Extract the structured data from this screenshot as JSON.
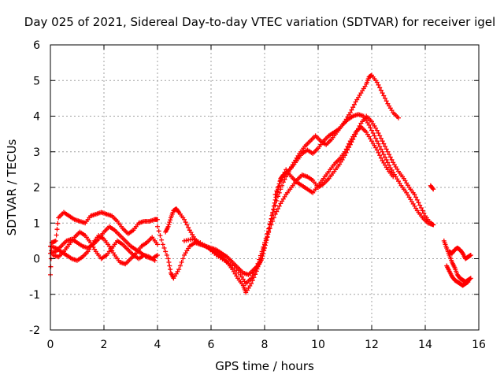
{
  "chart_data": {
    "type": "scatter",
    "title": "Day 025 of 2021, Sidereal Day-to-day VTEC variation (SDTVAR) for receiver igel",
    "xlabel": "GPS time / hours",
    "ylabel": "SDTVAR / TECUs",
    "xlim": [
      0,
      16
    ],
    "ylim": [
      -2,
      6
    ],
    "x_ticks": [
      "0",
      "2",
      "4",
      "6",
      "8",
      "10",
      "12",
      "14",
      "16"
    ],
    "y_ticks": [
      "-2",
      "-1",
      "0",
      "1",
      "2",
      "3",
      "4",
      "5",
      "6"
    ],
    "grid": true,
    "marker": "+",
    "color": "#ff0000",
    "series": [
      {
        "points": [
          [
            0.0,
            -0.45
          ],
          [
            0.05,
            0.45
          ],
          [
            0.2,
            0.5
          ],
          [
            0.3,
            1.15
          ],
          [
            0.5,
            1.3
          ],
          [
            0.7,
            1.2
          ],
          [
            0.9,
            1.1
          ],
          [
            1.1,
            1.05
          ],
          [
            1.3,
            1.0
          ],
          [
            1.5,
            1.2
          ],
          [
            1.7,
            1.25
          ],
          [
            1.9,
            1.3
          ],
          [
            2.1,
            1.25
          ],
          [
            2.3,
            1.2
          ],
          [
            2.5,
            1.05
          ],
          [
            2.7,
            0.85
          ],
          [
            2.9,
            0.7
          ],
          [
            3.1,
            0.8
          ],
          [
            3.3,
            1.0
          ],
          [
            3.5,
            1.05
          ],
          [
            3.7,
            1.05
          ],
          [
            3.9,
            1.1
          ],
          [
            4.0,
            1.1
          ]
        ]
      },
      {
        "points": [
          [
            0.0,
            0.15
          ],
          [
            0.2,
            0.2
          ],
          [
            0.4,
            0.35
          ],
          [
            0.6,
            0.5
          ],
          [
            0.8,
            0.55
          ],
          [
            1.0,
            0.45
          ],
          [
            1.2,
            0.35
          ],
          [
            1.4,
            0.3
          ],
          [
            1.6,
            0.4
          ],
          [
            1.8,
            0.55
          ],
          [
            2.0,
            0.75
          ],
          [
            2.2,
            0.9
          ],
          [
            2.4,
            0.8
          ],
          [
            2.6,
            0.65
          ],
          [
            2.8,
            0.5
          ],
          [
            3.0,
            0.35
          ],
          [
            3.2,
            0.25
          ],
          [
            3.4,
            0.15
          ],
          [
            3.6,
            0.05
          ],
          [
            3.8,
            0.0
          ],
          [
            4.0,
            0.1
          ]
        ]
      },
      {
        "points": [
          [
            0.0,
            0.35
          ],
          [
            0.2,
            0.3
          ],
          [
            0.4,
            0.2
          ],
          [
            0.6,
            0.1
          ],
          [
            0.8,
            0.0
          ],
          [
            1.0,
            -0.05
          ],
          [
            1.2,
            0.05
          ],
          [
            1.4,
            0.2
          ],
          [
            1.6,
            0.45
          ],
          [
            1.8,
            0.65
          ],
          [
            2.0,
            0.55
          ],
          [
            2.2,
            0.35
          ],
          [
            2.4,
            0.1
          ],
          [
            2.6,
            -0.1
          ],
          [
            2.8,
            -0.15
          ],
          [
            3.0,
            0.0
          ],
          [
            3.2,
            0.15
          ],
          [
            3.4,
            0.35
          ],
          [
            3.6,
            0.45
          ],
          [
            3.8,
            0.6
          ],
          [
            4.0,
            0.4
          ]
        ]
      },
      {
        "points": [
          [
            0.1,
            0.1
          ],
          [
            0.3,
            0.05
          ],
          [
            0.5,
            0.2
          ],
          [
            0.7,
            0.4
          ],
          [
            0.9,
            0.6
          ],
          [
            1.1,
            0.75
          ],
          [
            1.3,
            0.65
          ],
          [
            1.5,
            0.45
          ],
          [
            1.7,
            0.2
          ],
          [
            1.9,
            0.0
          ],
          [
            2.1,
            0.1
          ],
          [
            2.3,
            0.3
          ],
          [
            2.5,
            0.5
          ],
          [
            2.7,
            0.4
          ],
          [
            2.9,
            0.25
          ],
          [
            3.1,
            0.1
          ],
          [
            3.3,
            0.0
          ],
          [
            3.5,
            0.1
          ],
          [
            3.7,
            0.05
          ],
          [
            3.9,
            -0.05
          ]
        ]
      },
      {
        "points": [
          [
            4.3,
            0.75
          ],
          [
            4.4,
            0.9
          ],
          [
            4.5,
            1.15
          ],
          [
            4.6,
            1.35
          ],
          [
            4.7,
            1.4
          ],
          [
            4.8,
            1.3
          ],
          [
            5.0,
            1.1
          ],
          [
            5.2,
            0.8
          ],
          [
            5.4,
            0.55
          ],
          [
            5.6,
            0.4
          ],
          [
            5.8,
            0.35
          ],
          [
            6.0,
            0.3
          ],
          [
            6.2,
            0.25
          ],
          [
            6.4,
            0.15
          ],
          [
            6.6,
            0.05
          ],
          [
            6.8,
            -0.1
          ],
          [
            7.0,
            -0.25
          ],
          [
            7.2,
            -0.4
          ],
          [
            7.4,
            -0.45
          ],
          [
            7.6,
            -0.3
          ],
          [
            7.8,
            -0.15
          ],
          [
            7.9,
            0.0
          ],
          [
            8.0,
            0.3
          ],
          [
            8.1,
            0.6
          ],
          [
            8.2,
            0.95
          ],
          [
            8.3,
            1.3
          ],
          [
            8.4,
            1.65
          ],
          [
            8.5,
            1.95
          ],
          [
            8.6,
            2.25
          ],
          [
            8.7,
            2.35
          ],
          [
            8.8,
            2.4
          ],
          [
            9.0,
            2.55
          ],
          [
            9.2,
            2.75
          ],
          [
            9.4,
            2.95
          ],
          [
            9.6,
            3.05
          ],
          [
            9.8,
            2.95
          ],
          [
            10.0,
            3.1
          ],
          [
            10.2,
            3.3
          ],
          [
            10.4,
            3.45
          ],
          [
            10.6,
            3.55
          ],
          [
            10.8,
            3.65
          ],
          [
            11.0,
            3.85
          ],
          [
            11.2,
            4.1
          ],
          [
            11.4,
            4.4
          ],
          [
            11.6,
            4.65
          ],
          [
            11.8,
            4.9
          ],
          [
            11.9,
            5.1
          ],
          [
            12.0,
            5.15
          ],
          [
            12.2,
            4.95
          ],
          [
            12.4,
            4.65
          ],
          [
            12.6,
            4.35
          ],
          [
            12.8,
            4.1
          ],
          [
            13.0,
            3.95
          ]
        ]
      },
      {
        "points": [
          [
            4.0,
            0.9
          ],
          [
            4.2,
            0.4
          ],
          [
            4.4,
            0.0
          ],
          [
            4.5,
            -0.4
          ],
          [
            4.6,
            -0.55
          ],
          [
            4.8,
            -0.3
          ],
          [
            5.0,
            0.1
          ],
          [
            5.2,
            0.35
          ],
          [
            5.4,
            0.45
          ],
          [
            5.6,
            0.4
          ],
          [
            5.8,
            0.35
          ],
          [
            6.0,
            0.25
          ],
          [
            6.2,
            0.15
          ],
          [
            6.4,
            0.05
          ],
          [
            6.6,
            -0.1
          ],
          [
            6.8,
            -0.3
          ],
          [
            7.0,
            -0.55
          ],
          [
            7.2,
            -0.75
          ],
          [
            7.3,
            -0.95
          ],
          [
            7.5,
            -0.7
          ],
          [
            7.7,
            -0.35
          ],
          [
            7.8,
            -0.1
          ],
          [
            8.0,
            0.4
          ],
          [
            8.2,
            0.85
          ],
          [
            8.4,
            1.25
          ],
          [
            8.6,
            1.55
          ],
          [
            8.8,
            1.8
          ],
          [
            9.0,
            2.0
          ],
          [
            9.2,
            2.2
          ],
          [
            9.4,
            2.35
          ],
          [
            9.6,
            2.3
          ],
          [
            9.8,
            2.2
          ],
          [
            10.0,
            2.0
          ],
          [
            10.2,
            2.1
          ],
          [
            10.4,
            2.25
          ],
          [
            10.6,
            2.45
          ],
          [
            10.8,
            2.65
          ],
          [
            11.0,
            2.9
          ],
          [
            11.2,
            3.2
          ],
          [
            11.4,
            3.5
          ],
          [
            11.6,
            3.8
          ],
          [
            11.8,
            4.0
          ],
          [
            12.0,
            3.85
          ],
          [
            12.2,
            3.6
          ],
          [
            12.4,
            3.3
          ],
          [
            12.6,
            3.0
          ],
          [
            12.8,
            2.7
          ],
          [
            13.0,
            2.45
          ],
          [
            13.2,
            2.25
          ],
          [
            13.4,
            2.0
          ],
          [
            13.6,
            1.8
          ],
          [
            13.8,
            1.5
          ],
          [
            14.0,
            1.2
          ],
          [
            14.2,
            1.0
          ],
          [
            14.3,
            0.95
          ]
        ]
      },
      {
        "points": [
          [
            5.0,
            0.5
          ],
          [
            5.3,
            0.55
          ],
          [
            5.6,
            0.45
          ],
          [
            5.9,
            0.3
          ],
          [
            6.2,
            0.1
          ],
          [
            6.5,
            -0.05
          ],
          [
            6.8,
            -0.2
          ],
          [
            7.1,
            -0.45
          ],
          [
            7.3,
            -0.7
          ],
          [
            7.5,
            -0.55
          ],
          [
            7.7,
            -0.25
          ],
          [
            7.9,
            0.2
          ],
          [
            8.1,
            0.7
          ],
          [
            8.3,
            1.25
          ],
          [
            8.5,
            1.75
          ],
          [
            8.7,
            2.15
          ],
          [
            8.9,
            2.45
          ],
          [
            9.1,
            2.7
          ],
          [
            9.3,
            2.95
          ],
          [
            9.5,
            3.15
          ],
          [
            9.7,
            3.3
          ],
          [
            9.9,
            3.45
          ],
          [
            10.1,
            3.3
          ],
          [
            10.3,
            3.2
          ],
          [
            10.5,
            3.35
          ],
          [
            10.7,
            3.55
          ],
          [
            10.9,
            3.75
          ],
          [
            11.1,
            3.9
          ],
          [
            11.3,
            4.0
          ],
          [
            11.5,
            4.05
          ],
          [
            11.7,
            4.0
          ],
          [
            11.9,
            3.75
          ],
          [
            12.1,
            3.45
          ],
          [
            12.3,
            3.15
          ],
          [
            12.5,
            2.85
          ],
          [
            12.7,
            2.55
          ],
          [
            12.9,
            2.3
          ],
          [
            13.1,
            2.05
          ],
          [
            13.3,
            1.85
          ],
          [
            13.5,
            1.6
          ],
          [
            13.7,
            1.35
          ],
          [
            13.9,
            1.15
          ],
          [
            14.1,
            1.0
          ],
          [
            14.3,
            0.95
          ]
        ]
      },
      {
        "points": [
          [
            8.4,
            1.8
          ],
          [
            8.6,
            2.2
          ],
          [
            8.8,
            2.5
          ],
          [
            9.0,
            2.3
          ],
          [
            9.2,
            2.15
          ],
          [
            9.4,
            2.05
          ],
          [
            9.6,
            1.95
          ],
          [
            9.8,
            1.85
          ],
          [
            10.0,
            2.05
          ],
          [
            10.2,
            2.25
          ],
          [
            10.4,
            2.45
          ],
          [
            10.6,
            2.65
          ],
          [
            10.8,
            2.8
          ],
          [
            11.0,
            3.0
          ],
          [
            11.2,
            3.3
          ],
          [
            11.4,
            3.55
          ],
          [
            11.6,
            3.7
          ],
          [
            11.8,
            3.55
          ],
          [
            12.0,
            3.3
          ],
          [
            12.2,
            3.05
          ],
          [
            12.4,
            2.75
          ],
          [
            12.6,
            2.5
          ],
          [
            12.8,
            2.3
          ]
        ]
      },
      {
        "points": [
          [
            14.2,
            2.05
          ],
          [
            14.3,
            1.95
          ]
        ]
      },
      {
        "points": [
          [
            14.7,
            0.5
          ],
          [
            14.8,
            0.3
          ],
          [
            14.9,
            0.1
          ],
          [
            15.0,
            -0.1
          ],
          [
            15.1,
            -0.25
          ],
          [
            15.2,
            -0.45
          ],
          [
            15.3,
            -0.55
          ],
          [
            15.4,
            -0.6
          ],
          [
            15.5,
            -0.65
          ],
          [
            15.6,
            -0.6
          ],
          [
            15.7,
            -0.55
          ]
        ]
      },
      {
        "points": [
          [
            14.8,
            -0.2
          ],
          [
            14.9,
            -0.35
          ],
          [
            15.0,
            -0.5
          ],
          [
            15.1,
            -0.6
          ],
          [
            15.2,
            -0.65
          ],
          [
            15.3,
            -0.7
          ],
          [
            15.4,
            -0.75
          ],
          [
            15.5,
            -0.7
          ],
          [
            15.6,
            -0.65
          ]
        ]
      },
      {
        "points": [
          [
            14.9,
            0.2
          ],
          [
            15.0,
            0.15
          ],
          [
            15.1,
            0.25
          ],
          [
            15.2,
            0.3
          ],
          [
            15.3,
            0.25
          ],
          [
            15.4,
            0.15
          ],
          [
            15.5,
            0.0
          ],
          [
            15.6,
            0.05
          ],
          [
            15.7,
            0.1
          ]
        ]
      }
    ]
  }
}
